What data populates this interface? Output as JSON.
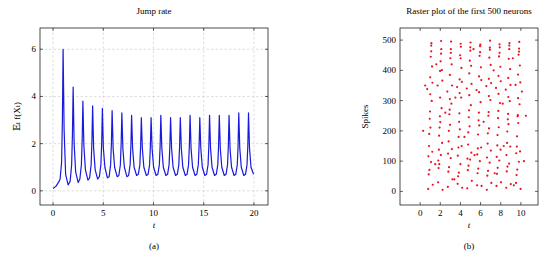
{
  "chart_data": [
    {
      "type": "line",
      "title": "Jump rate",
      "x_label": "t",
      "y_label": "𝔼ₜ f(Xₜ)",
      "caption": "(a)",
      "color": "#1a1adc",
      "grid": true,
      "xlim": [
        -1.3,
        21.4
      ],
      "ylim": [
        -0.6,
        6.9
      ],
      "xticks": [
        0,
        5,
        10,
        15,
        20
      ],
      "yticks": [
        0,
        2,
        4,
        6
      ],
      "x": [
        0,
        0.3,
        0.6,
        0.7,
        0.85,
        0.93,
        1.0,
        1.1,
        1.25,
        1.5,
        1.7,
        1.85,
        1.93,
        2.0,
        2.1,
        2.25,
        2.5,
        2.67,
        2.82,
        2.9,
        2.97,
        3.07,
        3.22,
        3.47,
        3.64,
        3.79,
        3.87,
        3.94,
        4.04,
        4.19,
        4.44,
        4.61,
        4.76,
        4.84,
        4.91,
        5.01,
        5.16,
        5.41,
        5.58,
        5.73,
        5.81,
        5.88,
        5.98,
        6.13,
        6.38,
        6.55,
        6.7,
        6.78,
        6.85,
        6.95,
        7.1,
        7.35,
        7.52,
        7.67,
        7.75,
        7.82,
        7.92,
        8.07,
        8.32,
        8.49,
        8.64,
        8.72,
        8.79,
        8.89,
        9.04,
        9.29,
        9.46,
        9.61,
        9.69,
        9.76,
        9.86,
        10.01,
        10.26,
        10.43,
        10.58,
        10.66,
        10.73,
        10.83,
        10.98,
        11.23,
        11.4,
        11.55,
        11.63,
        11.7,
        11.8,
        11.95,
        12.2,
        12.37,
        12.52,
        12.6,
        12.67,
        12.77,
        12.92,
        13.17,
        13.34,
        13.49,
        13.57,
        13.64,
        13.74,
        13.89,
        14.14,
        14.31,
        14.46,
        14.54,
        14.61,
        14.71,
        14.86,
        15.11,
        15.28,
        15.43,
        15.51,
        15.58,
        15.68,
        15.83,
        16.08,
        16.25,
        16.4,
        16.48,
        16.55,
        16.65,
        16.8,
        17.05,
        17.22,
        17.37,
        17.45,
        17.52,
        17.62,
        17.77,
        18.02,
        18.19,
        18.34,
        18.42,
        18.49,
        18.59,
        18.74,
        18.99,
        19.16,
        19.31,
        19.39,
        19.46,
        19.56,
        19.71,
        19.96
      ],
      "values": [
        0.1,
        0.2,
        0.4,
        0.5,
        1.2,
        3.0,
        6.0,
        2.6,
        0.7,
        0.25,
        0.4,
        1.1,
        2.4,
        4.4,
        2.0,
        0.8,
        0.35,
        0.5,
        1.1,
        2.2,
        3.8,
        1.9,
        0.9,
        0.45,
        0.55,
        1.1,
        2.1,
        3.6,
        1.8,
        0.9,
        0.5,
        0.6,
        1.1,
        2.0,
        3.5,
        1.8,
        1.0,
        0.55,
        0.6,
        1.1,
        2.0,
        3.4,
        1.8,
        1.0,
        0.6,
        0.65,
        1.1,
        2.0,
        3.3,
        1.8,
        1.0,
        0.6,
        0.65,
        1.1,
        1.9,
        3.2,
        1.8,
        1.0,
        0.65,
        0.7,
        1.1,
        1.9,
        3.1,
        1.8,
        1.0,
        0.65,
        0.7,
        1.1,
        1.9,
        3.1,
        1.8,
        1.0,
        0.65,
        0.7,
        1.1,
        1.9,
        3.2,
        1.8,
        1.0,
        0.65,
        0.7,
        1.1,
        1.9,
        3.1,
        1.8,
        1.0,
        0.65,
        0.7,
        1.1,
        1.9,
        3.1,
        1.8,
        1.0,
        0.65,
        0.7,
        1.1,
        1.9,
        3.2,
        1.8,
        1.0,
        0.65,
        0.7,
        1.1,
        1.9,
        3.1,
        1.8,
        1.0,
        0.65,
        0.7,
        1.1,
        1.9,
        3.2,
        1.8,
        1.0,
        0.65,
        0.7,
        1.1,
        1.9,
        3.2,
        1.8,
        1.0,
        0.65,
        0.7,
        1.1,
        1.9,
        3.2,
        1.8,
        1.0,
        0.65,
        0.7,
        1.1,
        1.9,
        3.3,
        1.8,
        1.0,
        0.65,
        0.7,
        1.1,
        1.9,
        3.3,
        1.8,
        1.0,
        0.7
      ]
    },
    {
      "type": "scatter",
      "title": "Raster plot of the first 500 neurons",
      "x_label": "t",
      "y_label": "Spikes",
      "caption": "(b)",
      "color": "#e8141e",
      "grid": false,
      "marker": "circle",
      "xlim": [
        -2.0,
        11.7
      ],
      "ylim": [
        -45,
        540
      ],
      "xticks": [
        0,
        2,
        4,
        6,
        8,
        10
      ],
      "yticks": [
        0,
        100,
        200,
        300,
        400,
        500
      ],
      "x": [
        0.8,
        1.1,
        0.95,
        1.2,
        1.0,
        0.85,
        1.15,
        0.9,
        1.05,
        1.25,
        0.7,
        1.08,
        0.98,
        1.18,
        0.88,
        1.12,
        0.92,
        1.02,
        1.22,
        0.82,
        1.0,
        1.1,
        1.78,
        2.08,
        1.93,
        2.18,
        1.98,
        1.83,
        2.13,
        1.88,
        2.03,
        2.23,
        1.73,
        2.06,
        1.96,
        2.16,
        1.86,
        2.1,
        1.9,
        2.0,
        2.2,
        1.8,
        1.98,
        2.08,
        2.75,
        3.05,
        2.9,
        3.15,
        2.95,
        2.8,
        3.1,
        2.85,
        3.0,
        3.2,
        2.7,
        3.03,
        2.93,
        3.13,
        2.83,
        3.07,
        2.87,
        2.97,
        3.17,
        2.77,
        2.95,
        3.05,
        3.72,
        4.02,
        3.87,
        4.12,
        3.92,
        3.77,
        4.07,
        3.82,
        3.97,
        4.17,
        3.67,
        4.0,
        3.9,
        4.1,
        3.8,
        4.04,
        3.84,
        3.94,
        4.14,
        3.74,
        3.92,
        4.02,
        4.68,
        4.98,
        4.83,
        5.08,
        4.88,
        4.73,
        5.03,
        4.78,
        4.93,
        5.13,
        4.63,
        4.96,
        4.86,
        5.06,
        4.76,
        5.0,
        4.8,
        4.9,
        5.1,
        4.7,
        4.88,
        4.98,
        5.65,
        5.95,
        5.8,
        6.05,
        5.85,
        5.7,
        6.0,
        5.75,
        5.9,
        6.1,
        5.6,
        5.93,
        5.83,
        6.03,
        5.73,
        5.97,
        5.77,
        5.87,
        6.07,
        5.67,
        5.85,
        5.95,
        6.62,
        6.92,
        6.77,
        7.02,
        6.82,
        6.67,
        6.97,
        6.72,
        6.87,
        7.07,
        6.57,
        6.9,
        6.8,
        7.0,
        6.7,
        6.94,
        6.74,
        6.84,
        7.04,
        6.64,
        6.82,
        6.92,
        7.58,
        7.88,
        7.73,
        7.98,
        7.78,
        7.63,
        7.93,
        7.68,
        7.83,
        8.03,
        7.53,
        7.86,
        7.76,
        7.96,
        7.66,
        7.9,
        7.7,
        7.8,
        8.0,
        7.6,
        7.78,
        7.88,
        8.55,
        8.85,
        8.7,
        8.95,
        8.75,
        8.6,
        8.9,
        8.65,
        8.8,
        9.0,
        8.5,
        8.83,
        8.73,
        8.93,
        8.63,
        8.87,
        8.67,
        8.77,
        8.97,
        8.57,
        8.75,
        8.85,
        9.52,
        9.82,
        9.67,
        9.92,
        9.72,
        9.57,
        9.87,
        9.62,
        9.77,
        9.97,
        9.47,
        9.8,
        9.7,
        9.9,
        9.6,
        9.84,
        9.64,
        9.74,
        9.94,
        9.54,
        9.72,
        9.82,
        0.3,
        0.5,
        1.5,
        1.6,
        2.5,
        3.4,
        3.5,
        4.4,
        5.3,
        5.4,
        6.3,
        7.3,
        7.4,
        8.2,
        8.3,
        9.2,
        9.3,
        10.1,
        10.3,
        10.5
      ],
      "values": [
        8,
        482,
        240,
        131,
        377,
        56,
        299,
        190,
        445,
        22,
        338,
        97,
        264,
        413,
        150,
        490,
        71,
        211,
        359,
        116,
        321,
        463,
        30,
        455,
        211,
        160,
        398,
        77,
        275,
        184,
        430,
        5,
        350,
        120,
        248,
        401,
        138,
        470,
        90,
        229,
        366,
        102,
        310,
        497,
        15,
        470,
        255,
        140,
        385,
        65,
        290,
        200,
        440,
        40,
        330,
        110,
        270,
        420,
        165,
        495,
        80,
        220,
        350,
        125,
        305,
        458,
        25,
        488,
        230,
        150,
        370,
        50,
        310,
        180,
        450,
        12,
        345,
        90,
        258,
        408,
        145,
        478,
        62,
        205,
        362,
        118,
        325,
        440,
        10,
        465,
        245,
        128,
        390,
        70,
        285,
        195,
        432,
        35,
        340,
        105,
        268,
        415,
        155,
        492,
        85,
        215,
        355,
        108,
        318,
        476,
        20,
        480,
        235,
        145,
        380,
        60,
        295,
        188,
        448,
        18,
        335,
        100,
        260,
        410,
        142,
        485,
        75,
        218,
        368,
        122,
        328,
        460,
        5,
        475,
        250,
        135,
        372,
        52,
        302,
        192,
        442,
        28,
        348,
        95,
        262,
        418,
        158,
        498,
        68,
        208,
        358,
        112,
        315,
        468,
        18,
        486,
        242,
        138,
        382,
        58,
        292,
        186,
        446,
        30,
        342,
        102,
        266,
        412,
        152,
        476,
        78,
        212,
        364,
        114,
        322,
        458,
        12,
        470,
        238,
        148,
        375,
        66,
        298,
        198,
        438,
        24,
        336,
        92,
        256,
        404,
        160,
        490,
        82,
        222,
        352,
        120,
        312,
        482,
        28,
        462,
        248,
        132,
        386,
        54,
        288,
        182,
        452,
        8,
        352,
        98,
        252,
        416,
        148,
        494,
        72,
        226,
        360,
        126,
        308,
        472,
        200,
        350,
        90,
        420,
        260,
        40,
        310,
        180,
        470,
        120,
        230,
        400,
        60,
        290,
        150,
        440,
        20,
        330,
        100,
        250
      ]
    }
  ]
}
